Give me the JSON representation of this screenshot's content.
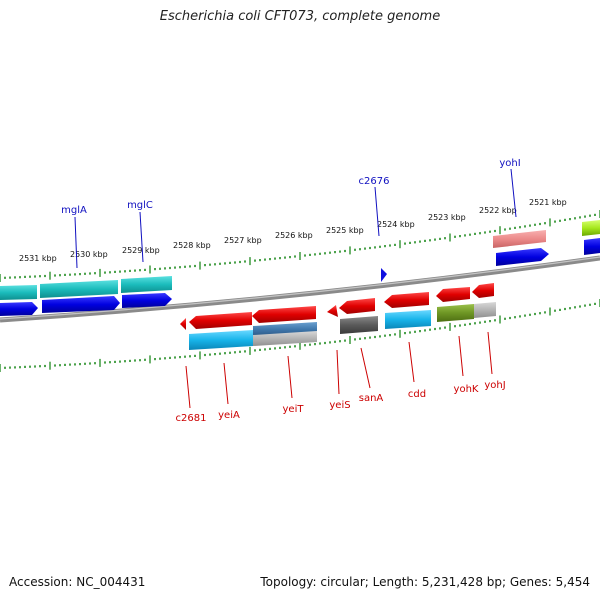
{
  "title": "Escherichia coli CFT073, complete genome",
  "footer": {
    "accession": "Accession: NC_004431",
    "stats": "Topology: circular; Length: 5,231,428 bp; Genes: 5,454"
  },
  "colors": {
    "backbone": "#8a8a8a",
    "tick": "#1f8a1f",
    "label_top": "#1010c0",
    "label_bottom": "#cc0000"
  },
  "kbp_labels": [
    {
      "text": "2531 kbp"
    },
    {
      "text": "2530 kbp"
    },
    {
      "text": "2529 kbp"
    },
    {
      "text": "2528 kbp"
    },
    {
      "text": "2527 kbp"
    },
    {
      "text": "2526 kbp"
    },
    {
      "text": "2525 kbp"
    },
    {
      "text": "2524 kbp"
    },
    {
      "text": "2523 kbp"
    },
    {
      "text": "2522 kbp"
    },
    {
      "text": "2521 kbp"
    }
  ],
  "gene_labels_top": [
    {
      "text": "mglA"
    },
    {
      "text": "mglC"
    },
    {
      "text": "c2676"
    },
    {
      "text": "yohI"
    }
  ],
  "gene_labels_bottom": [
    {
      "text": "c2681"
    },
    {
      "text": "yeiA"
    },
    {
      "text": "yeiT"
    },
    {
      "text": "yeiS"
    },
    {
      "text": "sanA"
    },
    {
      "text": "cdd"
    },
    {
      "text": "yohK"
    },
    {
      "text": "yohJ"
    }
  ]
}
